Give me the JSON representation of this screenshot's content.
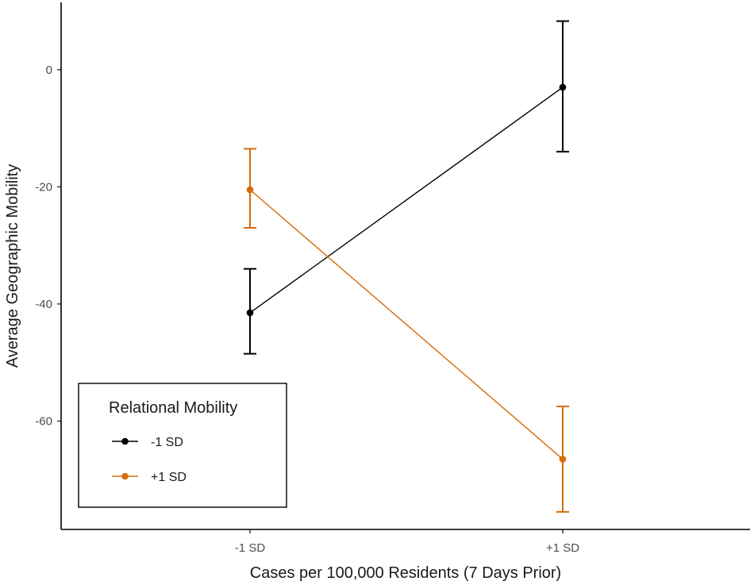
{
  "chart_data": {
    "type": "line",
    "xlabel": "Cases per 100,000 Residents (7 Days Prior)",
    "ylabel": "Average Geographic Mobility",
    "categories": [
      "-1 SD",
      "+1 SD"
    ],
    "ylim": [
      -78.5,
      11.5
    ],
    "yticks": [
      0,
      -20,
      -40,
      -60
    ],
    "grid": false,
    "legend": {
      "title": "Relational Mobility",
      "placement": "bottom-left"
    },
    "series": [
      {
        "name": "-1 SD",
        "color": "#000000",
        "values": [
          -41.5,
          -3
        ],
        "error_low": [
          -48.5,
          -14
        ],
        "error_high": [
          -34,
          8.3
        ]
      },
      {
        "name": "+1 SD",
        "color": "#d46c0b",
        "values": [
          -20.5,
          -66.5
        ],
        "error_low": [
          -27,
          -75.5
        ],
        "error_high": [
          -13.5,
          -57.5
        ]
      }
    ]
  }
}
